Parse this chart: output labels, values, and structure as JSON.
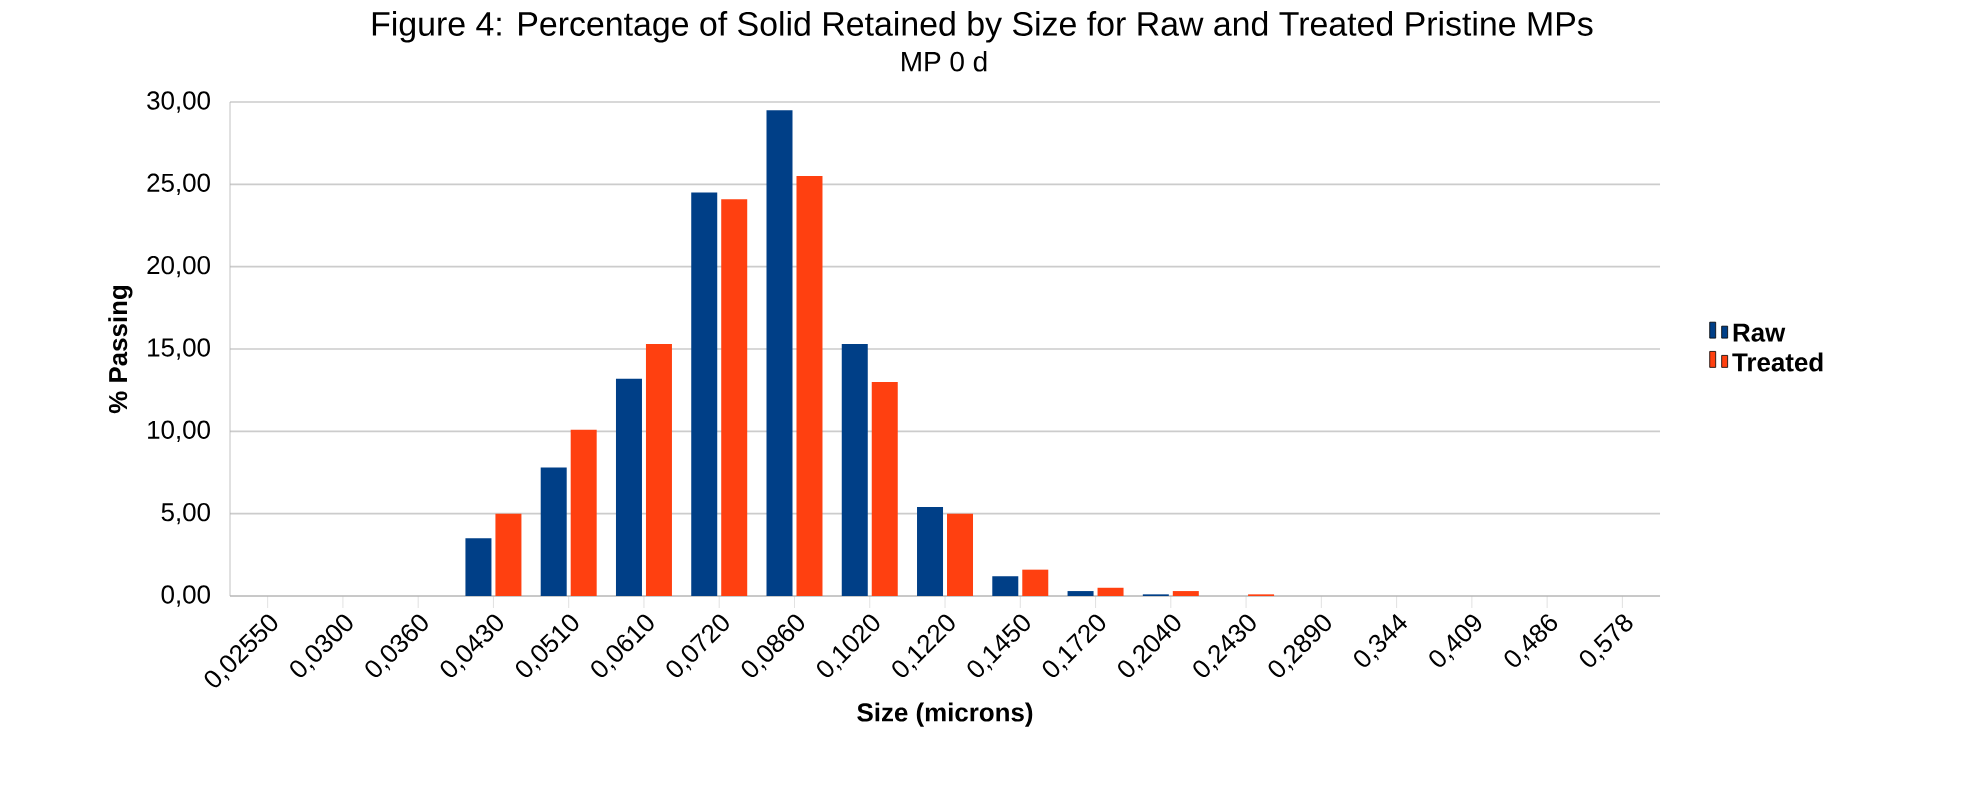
{
  "chart_data": {
    "type": "bar",
    "title": "Figure 4: Percentage of Solid Retained by Size for Raw and Treated Pristine MPs",
    "subtitle": "MP 0 d",
    "xlabel": "Size (microns)",
    "ylabel": "% Passing",
    "categories": [
      "0,02550",
      "0,0300",
      "0,0360",
      "0,0430",
      "0,0510",
      "0,0610",
      "0,0720",
      "0,0860",
      "0,1020",
      "0,1220",
      "0,1450",
      "0,1720",
      "0,2040",
      "0,2430",
      "0,2890",
      "0,344",
      "0,409",
      "0,486",
      "0,578"
    ],
    "series": [
      {
        "name": "Raw",
        "color": "#003f87",
        "values": [
          0,
          0,
          0,
          3.5,
          7.8,
          13.2,
          24.5,
          29.5,
          15.3,
          5.4,
          1.2,
          0.3,
          0.1,
          0,
          0,
          0,
          0,
          0,
          0
        ]
      },
      {
        "name": "Treated",
        "color": "#ff4010",
        "values": [
          0,
          0,
          0,
          5.0,
          10.1,
          15.3,
          24.1,
          25.5,
          13.0,
          5.0,
          1.6,
          0.5,
          0.3,
          0.1,
          0,
          0,
          0,
          0,
          0
        ]
      }
    ],
    "ylim": [
      0,
      30
    ],
    "yticks": [
      {
        "value": 0,
        "label": "0,00"
      },
      {
        "value": 5,
        "label": "5,00"
      },
      {
        "value": 10,
        "label": "10,00"
      },
      {
        "value": 15,
        "label": "15,00"
      },
      {
        "value": 20,
        "label": "20,00"
      },
      {
        "value": 25,
        "label": "25,00"
      },
      {
        "value": 30,
        "label": "30,00"
      }
    ],
    "grid": "y",
    "legend": "right"
  }
}
